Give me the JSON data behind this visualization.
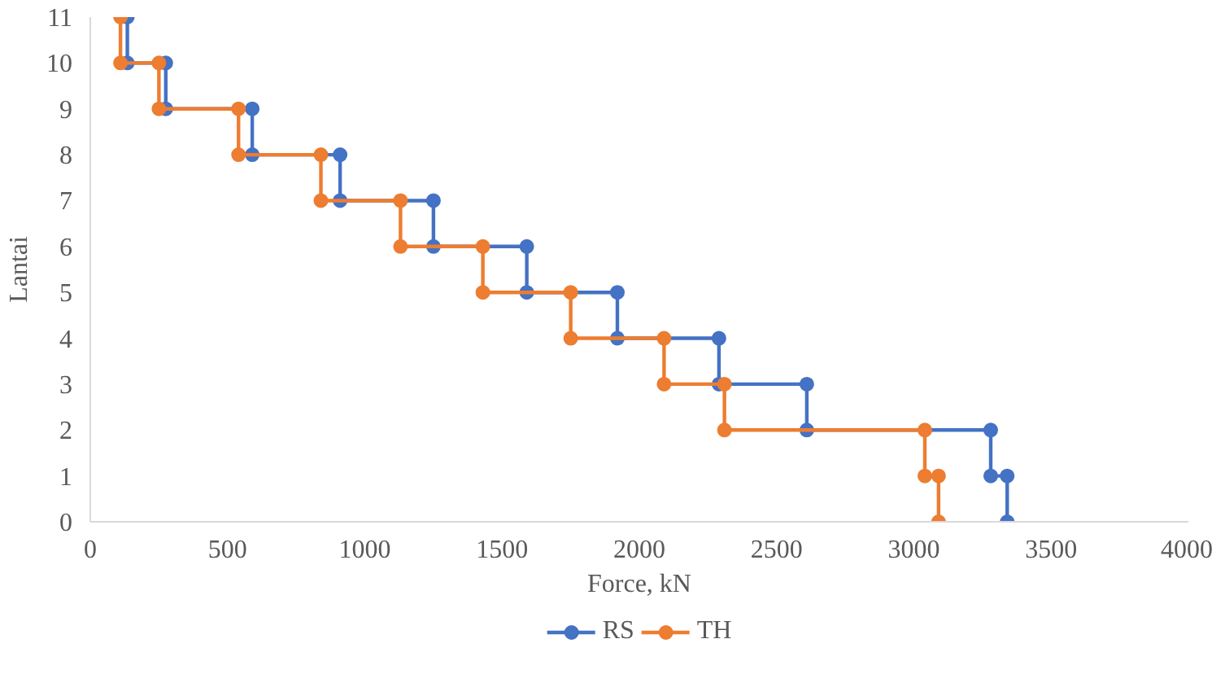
{
  "chart_data": {
    "type": "line",
    "xlabel": "Force, kN",
    "ylabel": "Lantai",
    "xlim": [
      0,
      4000
    ],
    "xticks": [
      0,
      500,
      1000,
      1500,
      2000,
      2500,
      3000,
      3500,
      4000
    ],
    "ylim": [
      0,
      11
    ],
    "yticks": [
      0,
      1,
      2,
      3,
      4,
      5,
      6,
      7,
      8,
      9,
      10,
      11
    ],
    "grid": false,
    "legend": "bottom",
    "marker": "circle",
    "line_style": "solid",
    "series": [
      {
        "name": "RS",
        "color": "#4472c4",
        "x": [
          135,
          135,
          275,
          275,
          590,
          590,
          910,
          910,
          1250,
          1250,
          1590,
          1590,
          1920,
          1920,
          2290,
          2290,
          2610,
          2610,
          3280,
          3280,
          3340,
          3340
        ],
        "values": [
          11,
          10,
          10,
          9,
          9,
          8,
          8,
          7,
          7,
          6,
          6,
          5,
          5,
          4,
          4,
          3,
          3,
          2,
          2,
          1,
          1,
          0
        ]
      },
      {
        "name": "TH",
        "color": "#ed7d31",
        "x": [
          110,
          110,
          250,
          250,
          540,
          540,
          840,
          840,
          1130,
          1130,
          1430,
          1430,
          1750,
          1750,
          2090,
          2090,
          2310,
          2310,
          3040,
          3040,
          3090,
          3090
        ],
        "values": [
          11,
          10,
          10,
          9,
          9,
          8,
          8,
          7,
          7,
          6,
          6,
          5,
          5,
          4,
          4,
          3,
          3,
          2,
          2,
          1,
          1,
          0
        ]
      }
    ]
  }
}
